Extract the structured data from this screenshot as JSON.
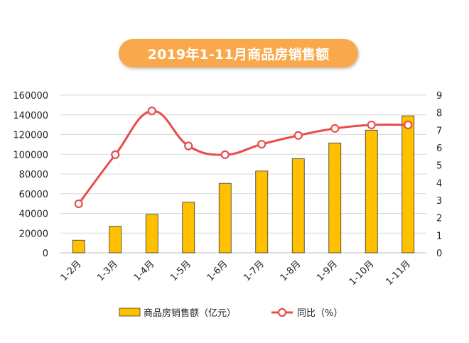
{
  "chart_data": {
    "type": "bar",
    "title": "2019年1-11月商品房销售额",
    "categories": [
      "1-2月",
      "1-3月",
      "1-4月",
      "1-5月",
      "1-6月",
      "1-7月",
      "1-8月",
      "1-9月",
      "1-10月",
      "1-11月"
    ],
    "series": [
      {
        "name": "商品房销售额（亿元）",
        "type": "bar",
        "axis": "left",
        "color": "#FFC000",
        "values": [
          12800,
          27000,
          39000,
          51500,
          70500,
          83000,
          95500,
          111500,
          124500,
          139000
        ]
      },
      {
        "name": "同比（%）",
        "type": "line",
        "axis": "right",
        "color": "#E84C4C",
        "values": [
          2.8,
          5.6,
          8.1,
          6.1,
          5.6,
          6.2,
          6.7,
          7.1,
          7.3,
          7.3
        ]
      }
    ],
    "y_left": {
      "min": 0,
      "max": 160000,
      "step": 20000
    },
    "y_right": {
      "min": 0,
      "max": 9,
      "step": 1
    },
    "grid": true,
    "legend_position": "bottom"
  }
}
